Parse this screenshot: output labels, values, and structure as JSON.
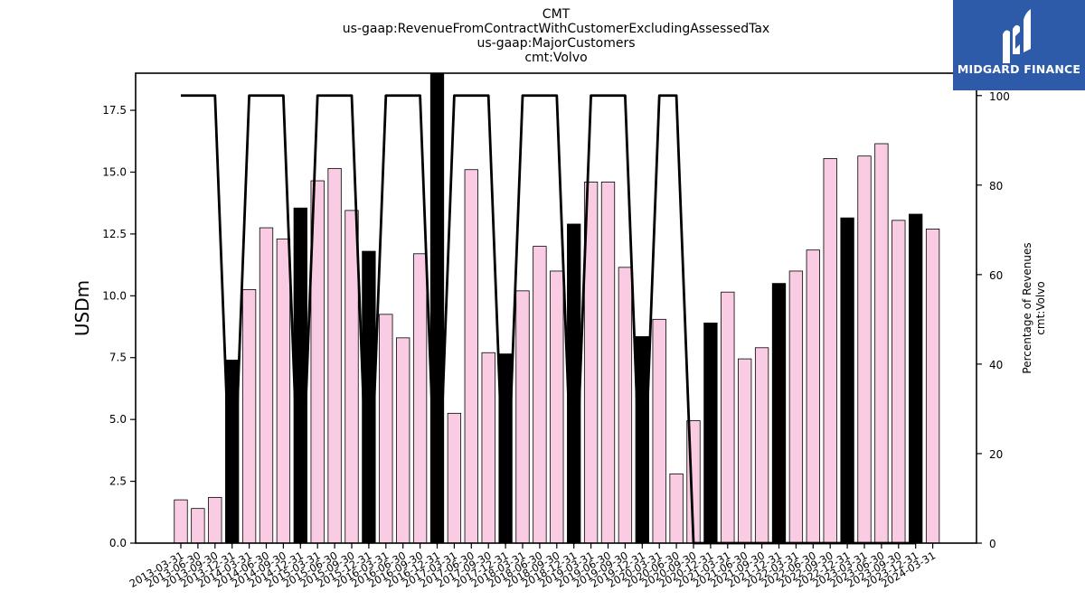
{
  "brand": {
    "name": "MIDGARD FINANCE",
    "bg_color": "#2d5ba9"
  },
  "chart_data": {
    "type": "bar",
    "title_lines": [
      "CMT",
      "us-gaap:RevenueFromContractWithCustomerExcludingAssessedTax",
      "us-gaap:MajorCustomers",
      "cmt:Volvo"
    ],
    "ylabel": "USDm",
    "ylabel_right": [
      "Percentage of Revenues",
      "cmt:Volvo"
    ],
    "ylim": [
      0,
      19.0
    ],
    "ylim_right": [
      0,
      105
    ],
    "yticks": [
      "0.0",
      "2.5",
      "5.0",
      "7.5",
      "10.0",
      "12.5",
      "15.0",
      "17.5"
    ],
    "yticks_right": [
      "0",
      "20",
      "40",
      "60",
      "80",
      "100"
    ],
    "categories": [
      "2013-03-31",
      "2013-06-30",
      "2013-09-30",
      "2013-12-31",
      "2014-03-31",
      "2014-06-30",
      "2014-09-30",
      "2014-12-31",
      "2015-03-31",
      "2015-06-30",
      "2015-09-30",
      "2015-12-31",
      "2016-03-31",
      "2016-06-30",
      "2016-09-30",
      "2016-12-31",
      "2017-03-31",
      "2017-06-30",
      "2017-09-30",
      "2017-12-31",
      "2018-03-31",
      "2018-06-30",
      "2018-09-30",
      "2018-12-31",
      "2019-03-31",
      "2019-06-30",
      "2019-09-30",
      "2019-12-31",
      "2020-03-31",
      "2020-06-30",
      "2020-09-30",
      "2020-12-31",
      "2021-03-31",
      "2021-06-30",
      "2021-09-30",
      "2021-12-31",
      "2022-03-31",
      "2022-06-30",
      "2022-09-30",
      "2022-12-31",
      "2023-03-31",
      "2023-06-30",
      "2023-09-30",
      "2023-12-31",
      "2024-03-31"
    ],
    "series": [
      {
        "values": [
          1.75,
          1.4,
          1.85,
          7.4,
          10.25,
          12.75,
          12.3,
          13.55,
          14.65,
          15.15,
          13.45,
          11.8,
          9.25,
          8.3,
          11.7,
          19.0,
          5.25,
          15.1,
          7.7,
          7.65,
          10.2,
          12.0,
          11.0,
          12.9,
          14.6,
          14.6,
          11.15,
          8.35,
          9.05,
          2.8,
          4.95,
          8.9,
          10.15,
          7.45,
          7.9,
          10.5,
          11.0,
          11.85,
          15.55,
          13.15,
          15.65,
          16.15,
          13.05,
          13.3,
          12.7
        ],
        "colors": [
          "#f9cce3",
          "#f9cce3",
          "#f9cce3",
          "#000000",
          "#f9cce3",
          "#f9cce3",
          "#f9cce3",
          "#000000",
          "#f9cce3",
          "#f9cce3",
          "#f9cce3",
          "#000000",
          "#f9cce3",
          "#f9cce3",
          "#f9cce3",
          "#000000",
          "#f9cce3",
          "#f9cce3",
          "#f9cce3",
          "#000000",
          "#f9cce3",
          "#f9cce3",
          "#f9cce3",
          "#000000",
          "#f9cce3",
          "#f9cce3",
          "#f9cce3",
          "#000000",
          "#f9cce3",
          "#f9cce3",
          "#f9cce3",
          "#000000",
          "#f9cce3",
          "#f9cce3",
          "#f9cce3",
          "#000000",
          "#f9cce3",
          "#f9cce3",
          "#f9cce3",
          "#000000",
          "#f9cce3",
          "#f9cce3",
          "#f9cce3",
          "#000000",
          "#f9cce3"
        ]
      },
      {
        "axis": "right",
        "type": "line",
        "color": "#000000",
        "values": [
          100,
          100,
          100,
          0,
          100,
          100,
          100,
          0,
          100,
          100,
          100,
          0,
          100,
          100,
          100,
          0,
          100,
          100,
          100,
          0,
          100,
          100,
          100,
          0,
          100,
          100,
          100,
          0,
          100,
          100,
          0,
          0,
          0,
          0,
          0,
          0,
          0,
          0,
          0,
          0,
          0,
          0,
          0,
          0,
          null
        ]
      }
    ],
    "grid": false
  }
}
